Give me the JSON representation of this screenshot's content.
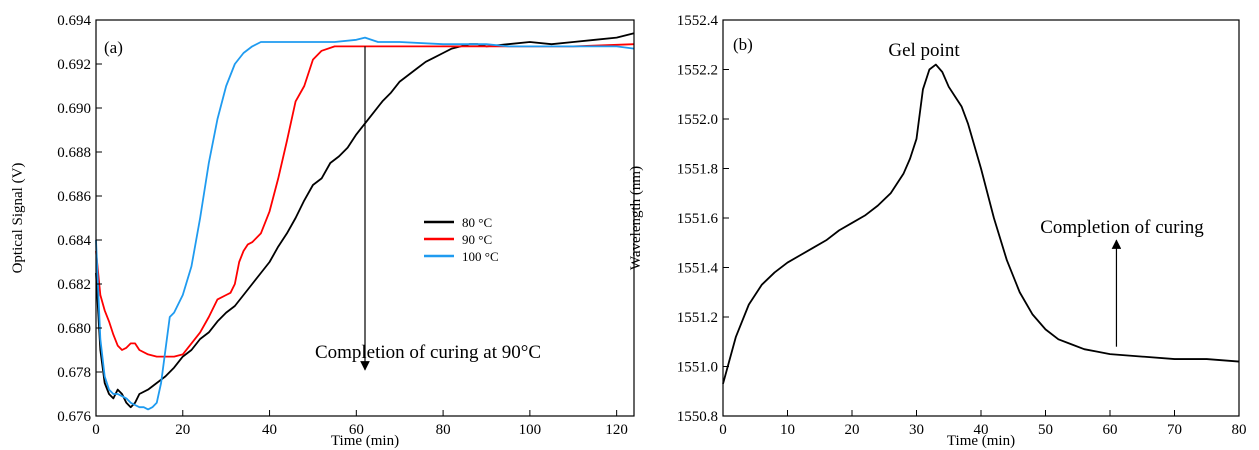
{
  "chart_data": [
    {
      "type": "line",
      "panel_label": "(a)",
      "xlabel": "Time (min)",
      "ylabel": "Optical Signal (V)",
      "xlim": [
        0,
        124
      ],
      "ylim": [
        0.676,
        0.694
      ],
      "xticks": [
        0,
        20,
        40,
        60,
        80,
        100,
        120
      ],
      "yticks": [
        0.676,
        0.678,
        0.68,
        0.682,
        0.684,
        0.686,
        0.688,
        0.69,
        0.692,
        0.694
      ],
      "ytick_labels": [
        "0.676",
        "0.678",
        "0.680",
        "0.682",
        "0.684",
        "0.686",
        "0.688",
        "0.690",
        "0.692",
        "0.694"
      ],
      "legend_position": "center-right",
      "series": [
        {
          "name": "80 °C",
          "color": "#000000",
          "x": [
            0,
            1,
            2,
            3,
            4,
            5,
            6,
            7,
            8,
            9,
            10,
            12,
            14,
            16,
            18,
            20,
            22,
            24,
            26,
            28,
            30,
            32,
            34,
            36,
            38,
            40,
            42,
            44,
            46,
            48,
            50,
            52,
            54,
            56,
            58,
            60,
            62,
            64,
            66,
            68,
            70,
            72,
            74,
            76,
            78,
            80,
            82,
            84,
            86,
            88,
            90,
            95,
            100,
            105,
            110,
            115,
            120,
            124
          ],
          "y": [
            0.6825,
            0.679,
            0.6775,
            0.677,
            0.6768,
            0.6772,
            0.677,
            0.6766,
            0.6764,
            0.6766,
            0.677,
            0.6772,
            0.6775,
            0.6778,
            0.6782,
            0.6787,
            0.679,
            0.6795,
            0.6798,
            0.6803,
            0.6807,
            0.681,
            0.6815,
            0.682,
            0.6825,
            0.683,
            0.6837,
            0.6843,
            0.685,
            0.6858,
            0.6865,
            0.6868,
            0.6875,
            0.6878,
            0.6882,
            0.6888,
            0.6893,
            0.6898,
            0.6903,
            0.6907,
            0.6912,
            0.6915,
            0.6918,
            0.6921,
            0.6923,
            0.6925,
            0.6927,
            0.6928,
            0.6929,
            0.6929,
            0.6928,
            0.6929,
            0.693,
            0.6929,
            0.693,
            0.6931,
            0.6932,
            0.6934
          ]
        },
        {
          "name": "90 °C",
          "color": "#ff0000",
          "x": [
            0,
            1,
            2,
            3,
            4,
            5,
            6,
            7,
            8,
            9,
            10,
            12,
            14,
            16,
            18,
            20,
            22,
            24,
            26,
            28,
            30,
            31,
            32,
            33,
            34,
            35,
            36,
            38,
            40,
            42,
            44,
            46,
            48,
            50,
            52,
            55,
            60,
            70,
            80,
            90,
            100,
            110,
            124
          ],
          "y": [
            0.6835,
            0.6815,
            0.6808,
            0.6803,
            0.6797,
            0.6792,
            0.679,
            0.6791,
            0.6793,
            0.6793,
            0.679,
            0.6788,
            0.6787,
            0.6787,
            0.6787,
            0.6788,
            0.6793,
            0.6798,
            0.6805,
            0.6813,
            0.6815,
            0.6816,
            0.682,
            0.683,
            0.6835,
            0.6838,
            0.6839,
            0.6843,
            0.6853,
            0.6868,
            0.6885,
            0.6903,
            0.691,
            0.6922,
            0.6926,
            0.6928,
            0.6928,
            0.6928,
            0.6928,
            0.6928,
            0.6928,
            0.6928,
            0.6929
          ]
        },
        {
          "name": "100 °C",
          "color": "#1f9bf0",
          "x": [
            0,
            1,
            2,
            3,
            4,
            5,
            6,
            7,
            8,
            9,
            10,
            11,
            12,
            13,
            14,
            15,
            16,
            17,
            18,
            20,
            22,
            24,
            26,
            28,
            30,
            32,
            34,
            36,
            38,
            40,
            45,
            50,
            55,
            60,
            62,
            65,
            70,
            80,
            90,
            95,
            100,
            105,
            110,
            115,
            120,
            124
          ],
          "y": [
            0.684,
            0.6795,
            0.6778,
            0.6772,
            0.677,
            0.677,
            0.6769,
            0.6768,
            0.6766,
            0.6765,
            0.6764,
            0.6764,
            0.6763,
            0.6764,
            0.6766,
            0.6775,
            0.679,
            0.6805,
            0.6807,
            0.6815,
            0.6828,
            0.685,
            0.6875,
            0.6895,
            0.691,
            0.692,
            0.6925,
            0.6928,
            0.693,
            0.693,
            0.693,
            0.693,
            0.693,
            0.6931,
            0.6932,
            0.693,
            0.693,
            0.6929,
            0.6929,
            0.6928,
            0.6928,
            0.6928,
            0.6928,
            0.6928,
            0.6928,
            0.6927
          ]
        }
      ],
      "annotations": [
        {
          "text": "Completion of curing at 90°C",
          "arrow_x": 62,
          "arrow_from_y": 0.6928,
          "arrow_to_y": 0.6781
        }
      ]
    },
    {
      "type": "line",
      "panel_label": "(b)",
      "xlabel": "Time (min)",
      "ylabel": "Wavelength (nm)",
      "xlim": [
        0,
        80
      ],
      "ylim": [
        1550.8,
        1552.4
      ],
      "xticks": [
        0,
        10,
        20,
        30,
        40,
        50,
        60,
        70,
        80
      ],
      "yticks": [
        1550.8,
        1551.0,
        1551.2,
        1551.4,
        1551.6,
        1551.8,
        1552.0,
        1552.2,
        1552.4
      ],
      "ytick_labels": [
        "1550.8",
        "1551.0",
        "1551.2",
        "1551.4",
        "1551.6",
        "1551.8",
        "1552.0",
        "1552.2",
        "1552.4"
      ],
      "series": [
        {
          "name": "",
          "color": "#000000",
          "x": [
            0,
            2,
            4,
            6,
            8,
            10,
            12,
            14,
            16,
            18,
            20,
            22,
            24,
            26,
            28,
            29,
            30,
            31,
            32,
            33,
            34,
            35,
            36,
            37,
            38,
            40,
            42,
            44,
            46,
            48,
            50,
            52,
            54,
            56,
            58,
            60,
            65,
            70,
            75,
            80
          ],
          "y": [
            1550.93,
            1551.12,
            1551.25,
            1551.33,
            1551.38,
            1551.42,
            1551.45,
            1551.48,
            1551.51,
            1551.55,
            1551.58,
            1551.61,
            1551.65,
            1551.7,
            1551.78,
            1551.84,
            1551.92,
            1552.12,
            1552.2,
            1552.22,
            1552.19,
            1552.13,
            1552.09,
            1552.05,
            1551.98,
            1551.8,
            1551.6,
            1551.43,
            1551.3,
            1551.21,
            1551.15,
            1551.11,
            1551.09,
            1551.07,
            1551.06,
            1551.05,
            1551.04,
            1551.03,
            1551.03,
            1551.02
          ]
        }
      ],
      "annotations": [
        {
          "text": "Gel point",
          "x": 33,
          "y": 1552.22
        },
        {
          "text": "Completion of curing",
          "arrow_x": 61,
          "arrow_from_y": 1551.08,
          "arrow_to_y": 1551.51
        }
      ]
    }
  ]
}
